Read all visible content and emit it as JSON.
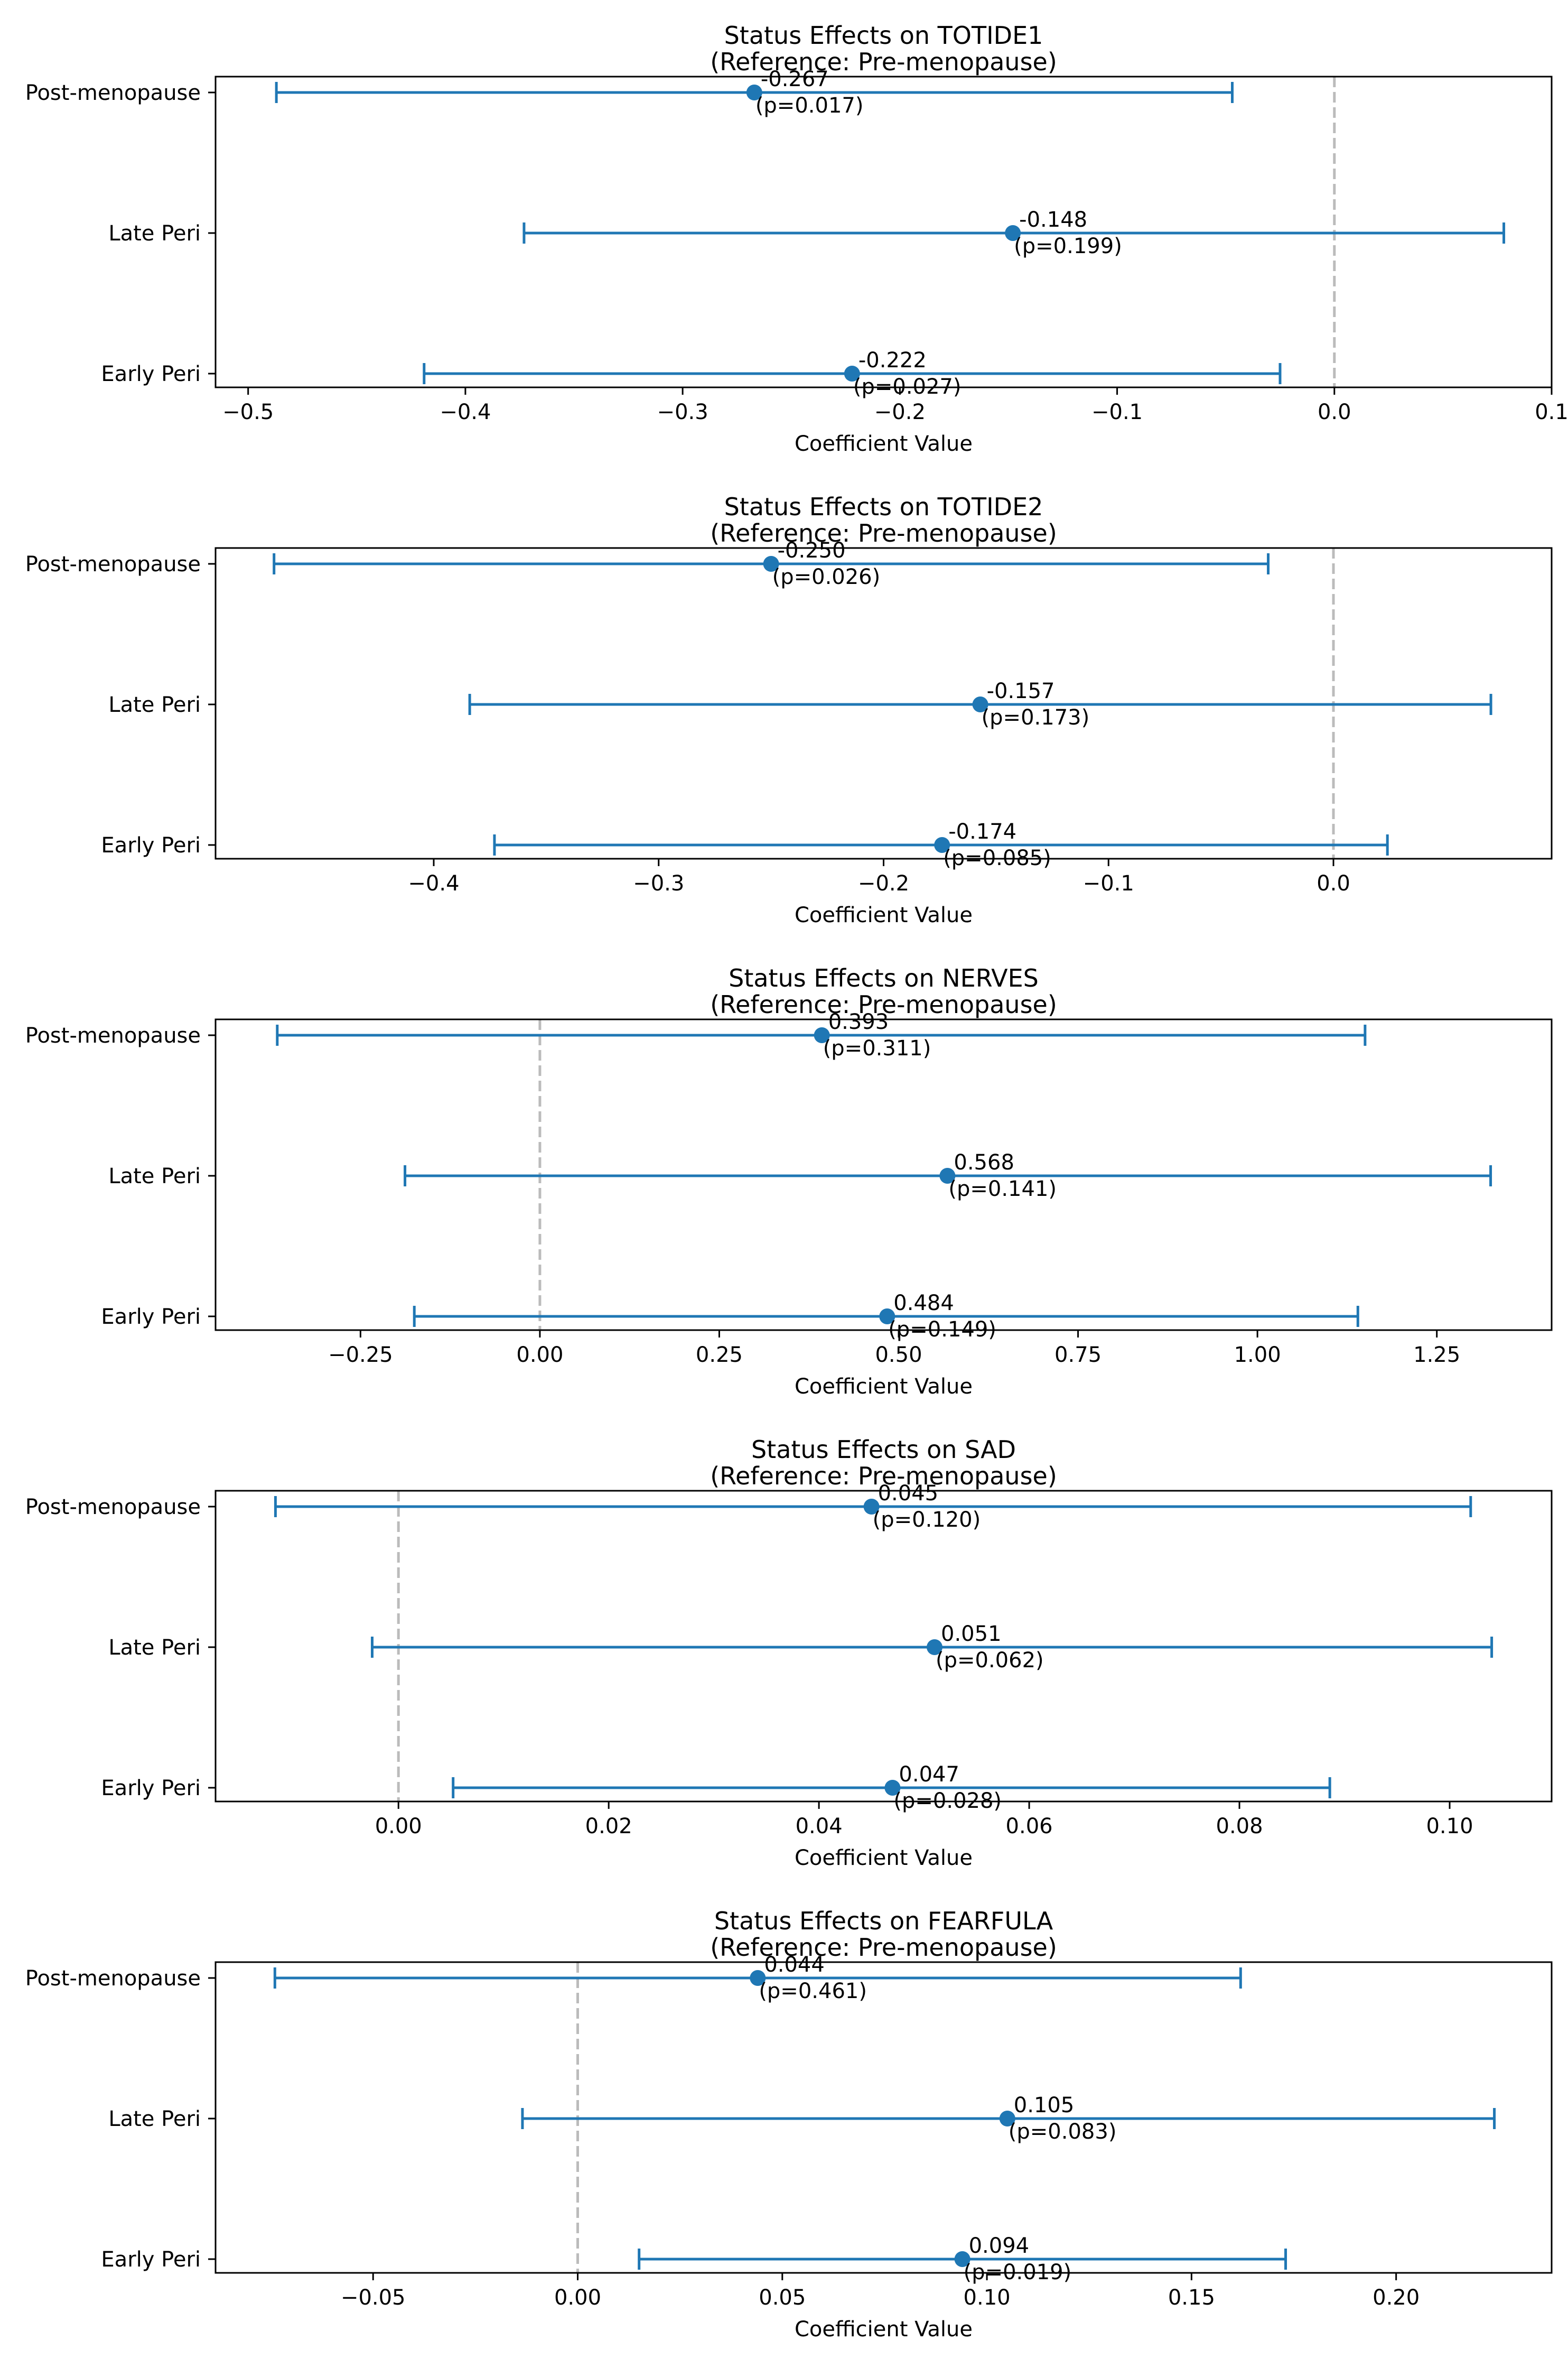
{
  "colors": {
    "series": "#1f77b4",
    "reference_line": "#bbbbbb",
    "frame": "#000000",
    "background": "#ffffff"
  },
  "chart_data": [
    {
      "type": "errorbar",
      "title": "Status Effects on TOTIDE1",
      "subtitle": "(Reference: Pre-menopause)",
      "xlabel": "Coefficient Value",
      "ylabel": "",
      "xlim": [
        -0.515,
        0.1
      ],
      "xticks": [
        -0.5,
        -0.4,
        -0.3,
        -0.2,
        -0.1,
        0.0,
        0.1
      ],
      "xtick_labels": [
        "−0.5",
        "−0.4",
        "−0.3",
        "−0.2",
        "−0.1",
        "0.0",
        "0.1"
      ],
      "reference_x": 0,
      "categories": [
        "Post-menopause",
        "Late Peri",
        "Early Peri"
      ],
      "points": [
        {
          "category": "Post-menopause",
          "estimate": -0.267,
          "ci_low": -0.487,
          "ci_high": -0.047,
          "estimate_label": "-0.267",
          "p_label": "(p=0.017)"
        },
        {
          "category": "Late Peri",
          "estimate": -0.148,
          "ci_low": -0.373,
          "ci_high": 0.078,
          "estimate_label": "-0.148",
          "p_label": "(p=0.199)"
        },
        {
          "category": "Early Peri",
          "estimate": -0.222,
          "ci_low": -0.419,
          "ci_high": -0.025,
          "estimate_label": "-0.222",
          "p_label": "(p=0.027)"
        }
      ]
    },
    {
      "type": "errorbar",
      "title": "Status Effects on TOTIDE2",
      "subtitle": "(Reference: Pre-menopause)",
      "xlabel": "Coefficient Value",
      "ylabel": "",
      "xlim": [
        -0.497,
        0.097
      ],
      "xticks": [
        -0.4,
        -0.3,
        -0.2,
        -0.1,
        0.0
      ],
      "xtick_labels": [
        "−0.4",
        "−0.3",
        "−0.2",
        "−0.1",
        "0.0"
      ],
      "reference_x": 0,
      "categories": [
        "Post-menopause",
        "Late Peri",
        "Early Peri"
      ],
      "points": [
        {
          "category": "Post-menopause",
          "estimate": -0.25,
          "ci_low": -0.471,
          "ci_high": -0.029,
          "estimate_label": "-0.250",
          "p_label": "(p=0.026)"
        },
        {
          "category": "Late Peri",
          "estimate": -0.157,
          "ci_low": -0.384,
          "ci_high": 0.07,
          "estimate_label": "-0.157",
          "p_label": "(p=0.173)"
        },
        {
          "category": "Early Peri",
          "estimate": -0.174,
          "ci_low": -0.373,
          "ci_high": 0.024,
          "estimate_label": "-0.174",
          "p_label": "(p=0.085)"
        }
      ]
    },
    {
      "type": "errorbar",
      "title": "Status Effects on NERVES",
      "subtitle": "(Reference: Pre-menopause)",
      "xlabel": "Coefficient Value",
      "ylabel": "",
      "xlim": [
        -0.452,
        1.41
      ],
      "xticks": [
        -0.25,
        0.0,
        0.25,
        0.5,
        0.75,
        1.0,
        1.25
      ],
      "xtick_labels": [
        "−0.25",
        "0.00",
        "0.25",
        "0.50",
        "0.75",
        "1.00",
        "1.25"
      ],
      "reference_x": 0,
      "categories": [
        "Post-menopause",
        "Late Peri",
        "Early Peri"
      ],
      "points": [
        {
          "category": "Post-menopause",
          "estimate": 0.393,
          "ci_low": -0.366,
          "ci_high": 1.15,
          "estimate_label": "0.393",
          "p_label": "(p=0.311)"
        },
        {
          "category": "Late Peri",
          "estimate": 0.568,
          "ci_low": -0.188,
          "ci_high": 1.325,
          "estimate_label": "0.568",
          "p_label": "(p=0.141)"
        },
        {
          "category": "Early Peri",
          "estimate": 0.484,
          "ci_low": -0.175,
          "ci_high": 1.14,
          "estimate_label": "0.484",
          "p_label": "(p=0.149)"
        }
      ]
    },
    {
      "type": "errorbar",
      "title": "Status Effects on SAD",
      "subtitle": "(Reference: Pre-menopause)",
      "xlabel": "Coefficient Value",
      "ylabel": "",
      "xlim": [
        -0.0174,
        0.1097
      ],
      "xticks": [
        0.0,
        0.02,
        0.04,
        0.06,
        0.08,
        0.1
      ],
      "xtick_labels": [
        "0.00",
        "0.02",
        "0.04",
        "0.06",
        "0.08",
        "0.10"
      ],
      "reference_x": 0,
      "categories": [
        "Post-menopause",
        "Late Peri",
        "Early Peri"
      ],
      "points": [
        {
          "category": "Post-menopause",
          "estimate": 0.045,
          "ci_low": -0.0117,
          "ci_high": 0.102,
          "estimate_label": "0.045",
          "p_label": "(p=0.120)"
        },
        {
          "category": "Late Peri",
          "estimate": 0.051,
          "ci_low": -0.0025,
          "ci_high": 0.104,
          "estimate_label": "0.051",
          "p_label": "(p=0.062)"
        },
        {
          "category": "Early Peri",
          "estimate": 0.047,
          "ci_low": 0.0052,
          "ci_high": 0.0886,
          "estimate_label": "0.047",
          "p_label": "(p=0.028)"
        }
      ]
    },
    {
      "type": "errorbar",
      "title": "Status Effects on FEARFULA",
      "subtitle": "(Reference: Pre-menopause)",
      "xlabel": "Coefficient Value",
      "ylabel": "",
      "xlim": [
        -0.0885,
        0.238
      ],
      "xticks": [
        -0.05,
        0.0,
        0.05,
        0.1,
        0.15,
        0.2
      ],
      "xtick_labels": [
        "−0.05",
        "0.00",
        "0.05",
        "0.10",
        "0.15",
        "0.20"
      ],
      "reference_x": 0,
      "categories": [
        "Post-menopause",
        "Late Peri",
        "Early Peri"
      ],
      "points": [
        {
          "category": "Post-menopause",
          "estimate": 0.044,
          "ci_low": -0.074,
          "ci_high": 0.162,
          "estimate_label": "0.044",
          "p_label": "(p=0.461)"
        },
        {
          "category": "Late Peri",
          "estimate": 0.105,
          "ci_low": -0.0135,
          "ci_high": 0.224,
          "estimate_label": "0.105",
          "p_label": "(p=0.083)"
        },
        {
          "category": "Early Peri",
          "estimate": 0.094,
          "ci_low": 0.015,
          "ci_high": 0.173,
          "estimate_label": "0.094",
          "p_label": "(p=0.019)"
        }
      ]
    }
  ]
}
